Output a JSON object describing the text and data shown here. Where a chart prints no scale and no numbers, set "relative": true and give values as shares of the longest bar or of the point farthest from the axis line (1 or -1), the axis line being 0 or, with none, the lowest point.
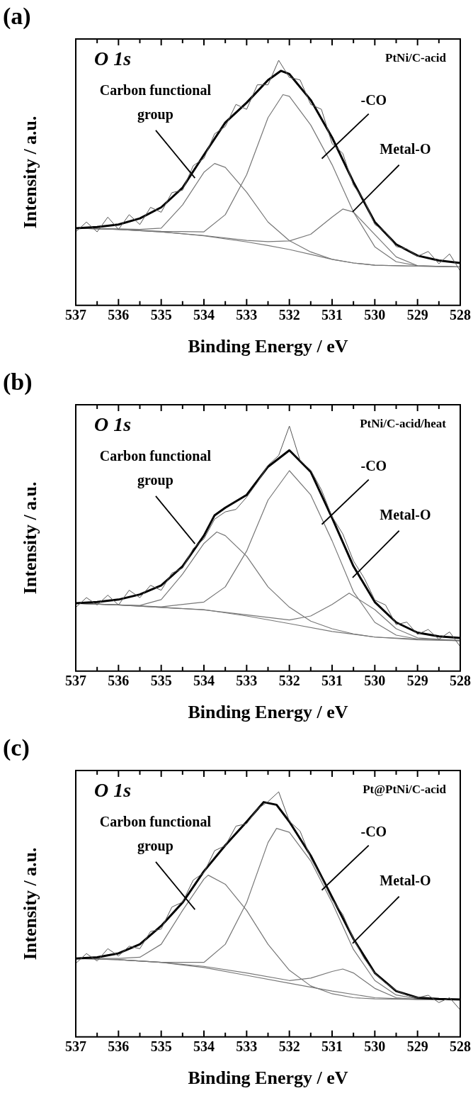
{
  "chart_data": [
    {
      "type": "line",
      "title": "(a)",
      "xlabel": "Binding Energy / eV",
      "ylabel": "Intensity / a.u.",
      "relative": true,
      "xlim": [
        537,
        528
      ],
      "xticks": [
        537,
        {
          "value": 536.5,
          "label": null
        },
        536,
        {
          "value": 535.5,
          "label": null
        },
        535,
        {
          "value": 534.5,
          "label": null
        },
        534,
        {
          "value": 533.5,
          "label": null
        },
        533,
        {
          "value": 532.5,
          "label": null
        },
        532,
        {
          "value": 531.5,
          "label": null
        },
        531,
        {
          "value": 530.5,
          "label": null
        },
        530,
        {
          "value": 529.5,
          "label": null
        },
        529,
        {
          "value": 528.5,
          "label": null
        },
        528
      ],
      "legend": false,
      "grid": false,
      "annotations": [
        "O 1s",
        "PtNi/C-acid",
        "Carbon functional group",
        "-CO",
        "Metal-O"
      ],
      "series": [
        {
          "color": "#555555",
          "x": [
            537,
            536.75,
            536.5,
            536.25,
            536,
            535.75,
            535.5,
            535.25,
            535,
            534.75,
            534.5,
            534.25,
            534,
            533.75,
            533.5,
            533.25,
            533,
            532.75,
            532.5,
            532.25,
            532,
            531.75,
            531.5,
            531.25,
            531,
            530.75,
            530.5,
            530.25,
            530,
            529.75,
            529.5,
            529.25,
            529,
            528.75,
            528.5,
            528.25,
            528
          ],
          "values": [
            0.3,
            0.34,
            0.3,
            0.36,
            0.31,
            0.37,
            0.33,
            0.4,
            0.38,
            0.46,
            0.47,
            0.57,
            0.6,
            0.7,
            0.73,
            0.82,
            0.8,
            0.9,
            0.9,
            1.0,
            0.93,
            0.92,
            0.82,
            0.8,
            0.66,
            0.62,
            0.49,
            0.43,
            0.33,
            0.3,
            0.24,
            0.23,
            0.2,
            0.22,
            0.17,
            0.21,
            0.14
          ]
        },
        {
          "color": "#000000",
          "x": [
            537,
            536.5,
            536,
            535.5,
            535,
            534.5,
            534,
            533.5,
            533,
            532.5,
            532.2,
            532,
            531.5,
            531,
            530.5,
            530,
            529.5,
            529,
            528.5,
            528
          ],
          "values": [
            0.315,
            0.32,
            0.33,
            0.355,
            0.4,
            0.48,
            0.614,
            0.746,
            0.827,
            0.919,
            0.957,
            0.944,
            0.838,
            0.685,
            0.503,
            0.34,
            0.249,
            0.203,
            0.183,
            0.173
          ]
        },
        {
          "color": "#777777",
          "x": [
            537,
            536,
            535.5,
            535,
            534.5,
            534,
            533.75,
            533.5,
            533,
            532.5,
            532,
            531.5,
            531,
            530.5,
            530,
            529,
            528
          ],
          "values": [
            0.315,
            0.312,
            0.31,
            0.315,
            0.41,
            0.543,
            0.579,
            0.563,
            0.462,
            0.34,
            0.264,
            0.218,
            0.188,
            0.173,
            0.164,
            0.16,
            0.157
          ]
        },
        {
          "color": "#777777",
          "x": [
            537,
            536,
            535,
            534,
            533.5,
            533,
            532.5,
            532.15,
            532,
            531.5,
            531,
            530.5,
            530,
            529.5,
            529,
            528
          ],
          "values": [
            0.315,
            0.31,
            0.302,
            0.3,
            0.37,
            0.533,
            0.766,
            0.86,
            0.853,
            0.736,
            0.574,
            0.381,
            0.239,
            0.178,
            0.162,
            0.157
          ]
        },
        {
          "color": "#777777",
          "x": [
            537,
            536,
            535,
            534,
            533,
            532.5,
            532,
            531.5,
            531,
            530.75,
            530.5,
            530,
            529.5,
            529,
            528
          ],
          "values": [
            0.315,
            0.31,
            0.3,
            0.285,
            0.265,
            0.26,
            0.263,
            0.29,
            0.36,
            0.393,
            0.381,
            0.289,
            0.198,
            0.162,
            0.157
          ]
        },
        {
          "color": "#777777",
          "x": [
            537,
            536,
            535,
            534,
            533,
            532.5,
            532,
            531.5,
            531,
            530.5,
            530,
            529,
            528
          ],
          "values": [
            0.315,
            0.31,
            0.3,
            0.284,
            0.259,
            0.244,
            0.228,
            0.208,
            0.188,
            0.173,
            0.164,
            0.16,
            0.157
          ]
        }
      ]
    },
    {
      "type": "line",
      "title": "(b)",
      "xlabel": "Binding Energy / eV",
      "ylabel": "Intensity / a.u.",
      "relative": true,
      "xlim": [
        537,
        528
      ],
      "xticks": [
        537,
        {
          "value": 536.5,
          "label": null
        },
        536,
        {
          "value": 535.5,
          "label": null
        },
        535,
        {
          "value": 534.5,
          "label": null
        },
        534,
        {
          "value": 533.5,
          "label": null
        },
        533,
        {
          "value": 532.5,
          "label": null
        },
        532,
        {
          "value": 531.5,
          "label": null
        },
        531,
        {
          "value": 530.5,
          "label": null
        },
        530,
        {
          "value": 529.5,
          "label": null
        },
        529,
        {
          "value": 528.5,
          "label": null
        },
        528
      ],
      "legend": false,
      "grid": false,
      "annotations": [
        "O 1s",
        "PtNi/C-acid/heat",
        "Carbon functional group",
        "-CO",
        "Metal-O"
      ],
      "series": [
        {
          "color": "#555555",
          "x": [
            537,
            536.75,
            536.5,
            536.25,
            536,
            535.75,
            535.5,
            535.25,
            535,
            534.75,
            534.5,
            534.25,
            534,
            533.75,
            533.5,
            533.25,
            533,
            532.75,
            532.5,
            532.25,
            532,
            531.75,
            531.5,
            531.25,
            531,
            530.75,
            530.5,
            530.25,
            530,
            529.75,
            529.5,
            529.25,
            529,
            528.75,
            528.5,
            528.25,
            528
          ],
          "values": [
            0.26,
            0.3,
            0.27,
            0.31,
            0.27,
            0.33,
            0.3,
            0.35,
            0.33,
            0.4,
            0.42,
            0.5,
            0.54,
            0.62,
            0.65,
            0.66,
            0.71,
            0.77,
            0.84,
            0.88,
            1.0,
            0.86,
            0.82,
            0.74,
            0.63,
            0.56,
            0.45,
            0.38,
            0.29,
            0.27,
            0.19,
            0.2,
            0.15,
            0.17,
            0.13,
            0.16,
            0.1
          ]
        },
        {
          "color": "#000000",
          "x": [
            537,
            536.5,
            536,
            535.5,
            535,
            534.5,
            534,
            533.75,
            533.5,
            533,
            532.5,
            532,
            531.5,
            531,
            530.5,
            530,
            529.5,
            529,
            528.5,
            528
          ],
          "values": [
            0.277,
            0.282,
            0.292,
            0.313,
            0.35,
            0.428,
            0.553,
            0.636,
            0.667,
            0.719,
            0.834,
            0.901,
            0.813,
            0.625,
            0.428,
            0.282,
            0.199,
            0.157,
            0.142,
            0.135
          ]
        },
        {
          "color": "#777777",
          "x": [
            537,
            536,
            535.5,
            535,
            534.5,
            534,
            533.7,
            533.5,
            533,
            532.5,
            532,
            531.5,
            531,
            530.5,
            530,
            529,
            528
          ],
          "values": [
            0.277,
            0.27,
            0.268,
            0.292,
            0.396,
            0.521,
            0.568,
            0.553,
            0.469,
            0.344,
            0.261,
            0.204,
            0.173,
            0.152,
            0.139,
            0.131,
            0.126
          ]
        },
        {
          "color": "#777777",
          "x": [
            537,
            536,
            535,
            534,
            533.5,
            533,
            532.5,
            532,
            531.5,
            531,
            530.5,
            530,
            529.5,
            529,
            528
          ],
          "values": [
            0.277,
            0.27,
            0.262,
            0.282,
            0.344,
            0.49,
            0.698,
            0.818,
            0.719,
            0.532,
            0.324,
            0.199,
            0.147,
            0.131,
            0.124
          ]
        },
        {
          "color": "#777777",
          "x": [
            537,
            536,
            535,
            534,
            533,
            532,
            531.5,
            531,
            530.6,
            530,
            529.5,
            529,
            528
          ],
          "values": [
            0.277,
            0.27,
            0.26,
            0.25,
            0.23,
            0.209,
            0.225,
            0.272,
            0.318,
            0.251,
            0.173,
            0.136,
            0.124
          ]
        },
        {
          "color": "#777777",
          "x": [
            537,
            536,
            535,
            534,
            533,
            532,
            531,
            530,
            529,
            528
          ],
          "values": [
            0.277,
            0.27,
            0.26,
            0.251,
            0.225,
            0.194,
            0.162,
            0.139,
            0.128,
            0.124
          ]
        }
      ]
    },
    {
      "type": "line",
      "title": "(c)",
      "xlabel": "Binding Energy / eV",
      "ylabel": "Intensity / a.u.",
      "relative": true,
      "xlim": [
        537,
        528
      ],
      "xticks": [
        537,
        {
          "value": 536.5,
          "label": null
        },
        536,
        {
          "value": 535.5,
          "label": null
        },
        535,
        {
          "value": 534.5,
          "label": null
        },
        534,
        {
          "value": 533.5,
          "label": null
        },
        533,
        {
          "value": 532.5,
          "label": null
        },
        532,
        {
          "value": 531.5,
          "label": null
        },
        531,
        {
          "value": 530.5,
          "label": null
        },
        530,
        {
          "value": 529.5,
          "label": null
        },
        529,
        {
          "value": 528.5,
          "label": null
        },
        528
      ],
      "legend": false,
      "grid": false,
      "annotations": [
        "O 1s",
        "Pt@PtNi/C-acid",
        "Carbon functional group",
        "-CO",
        "Metal-O"
      ],
      "series": [
        {
          "color": "#555555",
          "x": [
            537,
            536.75,
            536.5,
            536.25,
            536,
            535.75,
            535.5,
            535.25,
            535,
            534.75,
            534.5,
            534.25,
            534,
            533.75,
            533.5,
            533.25,
            533,
            532.75,
            532.5,
            532.25,
            532,
            531.75,
            531.5,
            531.25,
            531,
            530.75,
            530.5,
            530.25,
            530,
            529.75,
            529.5,
            529.25,
            529,
            528.75,
            528.5,
            528.25,
            528
          ],
          "values": [
            0.3,
            0.34,
            0.31,
            0.36,
            0.33,
            0.37,
            0.36,
            0.43,
            0.44,
            0.53,
            0.55,
            0.64,
            0.67,
            0.76,
            0.78,
            0.86,
            0.87,
            0.93,
            0.96,
            1.0,
            0.88,
            0.84,
            0.73,
            0.65,
            0.56,
            0.5,
            0.4,
            0.32,
            0.26,
            0.22,
            0.19,
            0.17,
            0.16,
            0.17,
            0.14,
            0.16,
            0.11
          ]
        },
        {
          "color": "#000000",
          "x": [
            537,
            536.5,
            536,
            535.5,
            535,
            534.5,
            534,
            533.5,
            533,
            532.6,
            532.3,
            532,
            531.5,
            531,
            530.5,
            530,
            529.5,
            529,
            528.5,
            528
          ],
          "values": [
            0.32,
            0.325,
            0.341,
            0.378,
            0.453,
            0.548,
            0.676,
            0.782,
            0.878,
            0.958,
            0.947,
            0.878,
            0.74,
            0.57,
            0.4,
            0.261,
            0.187,
            0.16,
            0.155,
            0.153
          ]
        },
        {
          "color": "#777777",
          "x": [
            537,
            536,
            535.5,
            535,
            534.5,
            534,
            533.9,
            533.5,
            533,
            532.5,
            532,
            531.5,
            531,
            530.5,
            530,
            529,
            528
          ],
          "values": [
            0.32,
            0.32,
            0.325,
            0.378,
            0.516,
            0.644,
            0.66,
            0.623,
            0.516,
            0.378,
            0.272,
            0.208,
            0.176,
            0.16,
            0.155,
            0.153,
            0.153
          ]
        },
        {
          "color": "#777777",
          "x": [
            537,
            536,
            535,
            534,
            533.5,
            533,
            532.5,
            532.3,
            532,
            531.5,
            531,
            530.5,
            530,
            529.5,
            529,
            528
          ],
          "values": [
            0.32,
            0.315,
            0.304,
            0.304,
            0.378,
            0.548,
            0.793,
            0.851,
            0.835,
            0.718,
            0.548,
            0.357,
            0.23,
            0.171,
            0.155,
            0.153
          ]
        },
        {
          "color": "#777777",
          "x": [
            537,
            536,
            535,
            534,
            533,
            532,
            531.5,
            531,
            530.75,
            530.5,
            530,
            529.5,
            529,
            528
          ],
          "values": [
            0.32,
            0.315,
            0.304,
            0.288,
            0.261,
            0.23,
            0.24,
            0.267,
            0.277,
            0.261,
            0.198,
            0.16,
            0.153,
            0.153
          ]
        },
        {
          "color": "#777777",
          "x": [
            536,
            535,
            534,
            533,
            532,
            531,
            530,
            529,
            528
          ],
          "values": [
            0.315,
            0.304,
            0.283,
            0.251,
            0.219,
            0.187,
            0.16,
            0.153,
            0.153
          ]
        }
      ]
    }
  ]
}
